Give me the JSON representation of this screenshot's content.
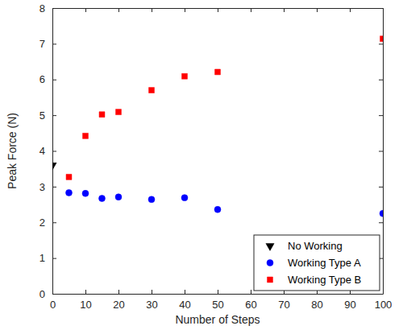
{
  "chart_data": {
    "type": "scatter",
    "x_label": "Number of Steps",
    "y_label": "Peak Force (N)",
    "xlim": [
      0,
      100
    ],
    "xticks": [
      0,
      10,
      20,
      30,
      40,
      50,
      60,
      70,
      80,
      90,
      100
    ],
    "ylim": [
      0,
      8
    ],
    "yticks": [
      0,
      1,
      2,
      3,
      4,
      5,
      6,
      7,
      8
    ],
    "grid": false,
    "legend": "lower right",
    "series": [
      {
        "name": "No Working",
        "color": "#000000",
        "marker": "triangle-down",
        "x": [
          0
        ],
        "values": [
          3.6
        ]
      },
      {
        "name": "Working Type A",
        "color": "#0000ff",
        "marker": "circle",
        "x": [
          5,
          10,
          15,
          20,
          30,
          40,
          50,
          100
        ],
        "values": [
          2.83,
          2.81,
          2.67,
          2.71,
          2.64,
          2.69,
          2.36,
          2.25
        ]
      },
      {
        "name": "Working Type B",
        "color": "#ff0000",
        "marker": "square",
        "x": [
          5,
          10,
          15,
          20,
          30,
          40,
          50,
          100
        ],
        "values": [
          3.27,
          4.42,
          5.02,
          5.09,
          5.7,
          6.09,
          6.21,
          7.14
        ]
      }
    ]
  }
}
